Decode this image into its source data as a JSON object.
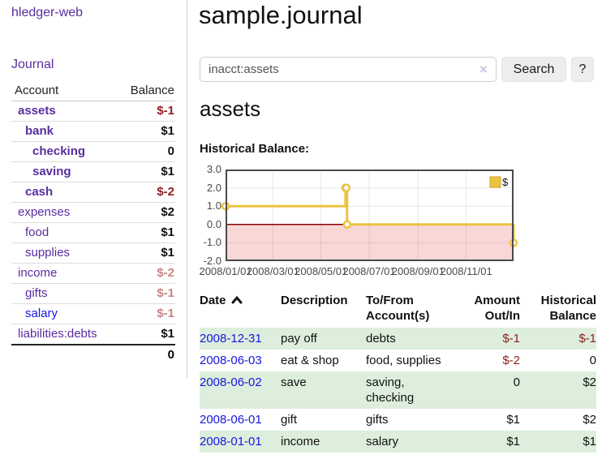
{
  "app": {
    "brand": "hledger-web",
    "nav_journal": "Journal"
  },
  "colors": {
    "link_purple": "#5a2ca0",
    "link_blue": "#1717e0",
    "negative_strong": "#8f1d1d",
    "negative_faded": "#c98585",
    "row_green": "#ddeedd",
    "chart_gold": "#EDC240",
    "chart_negative_region": "#F9D7D7",
    "chart_zero_line": "#8B0000"
  },
  "sidebar": {
    "headers": {
      "account": "Account",
      "balance": "Balance"
    },
    "accounts": [
      {
        "name": "assets",
        "balance": "$-1",
        "level": 1,
        "bold": true,
        "balance_style": "neg-strong",
        "link_style": "purple"
      },
      {
        "name": "bank",
        "balance": "$1",
        "level": 2,
        "bold": true,
        "balance_style": "pos",
        "link_style": "purple"
      },
      {
        "name": "checking",
        "balance": "0",
        "level": 3,
        "bold": true,
        "balance_style": "pos",
        "link_style": "purple"
      },
      {
        "name": "saving",
        "balance": "$1",
        "level": 3,
        "bold": true,
        "balance_style": "pos",
        "link_style": "purple"
      },
      {
        "name": "cash",
        "balance": "$-2",
        "level": 2,
        "bold": true,
        "balance_style": "neg-strong",
        "link_style": "purple"
      },
      {
        "name": "expenses",
        "balance": "$2",
        "level": 1,
        "bold": false,
        "balance_style": "pos",
        "link_style": "purple"
      },
      {
        "name": "food",
        "balance": "$1",
        "level": 2,
        "bold": false,
        "balance_style": "pos",
        "link_style": "purple"
      },
      {
        "name": "supplies",
        "balance": "$1",
        "level": 2,
        "bold": false,
        "balance_style": "pos",
        "link_style": "purple"
      },
      {
        "name": "income",
        "balance": "$-2",
        "level": 1,
        "bold": false,
        "balance_style": "neg-faded",
        "link_style": "purple"
      },
      {
        "name": "gifts",
        "balance": "$-1",
        "level": 2,
        "bold": false,
        "balance_style": "neg-faded",
        "link_style": "purple"
      },
      {
        "name": "salary",
        "balance": "$-1",
        "level": 2,
        "bold": false,
        "balance_style": "neg-faded",
        "link_style": "blue"
      },
      {
        "name": "liabilities:debts",
        "balance": "$1",
        "level": 1,
        "bold": false,
        "balance_style": "pos",
        "link_style": "purple"
      }
    ],
    "total": "0"
  },
  "header": {
    "title": "sample.journal"
  },
  "search": {
    "value": "inacct:assets",
    "clear_label": "×",
    "button": "Search",
    "help_button": "?"
  },
  "account_page": {
    "heading": "assets",
    "chart_label": "Historical Balance:"
  },
  "chart_data": {
    "type": "line",
    "step": true,
    "title": "Historical Balance",
    "series": [
      {
        "name": "$",
        "color": "#EDC240",
        "points": [
          {
            "date": "2008-01-01",
            "value": 1
          },
          {
            "date": "2008-06-01",
            "value": 2
          },
          {
            "date": "2008-06-02",
            "value": 2
          },
          {
            "date": "2008-06-03",
            "value": 0
          },
          {
            "date": "2008-12-31",
            "value": -1
          }
        ]
      }
    ],
    "x_range": [
      "2008-01-01",
      "2008-12-31"
    ],
    "x_ticks": [
      {
        "date": "2008-01-01",
        "label": "2008/01/01"
      },
      {
        "date": "2008-03-01",
        "label": "2008/03/01"
      },
      {
        "date": "2008-05-01",
        "label": "2008/05/01"
      },
      {
        "date": "2008-07-01",
        "label": "2008/07/01"
      },
      {
        "date": "2008-09-01",
        "label": "2008/09/01"
      },
      {
        "date": "2008-11-01",
        "label": "2008/11/01"
      }
    ],
    "ylim": [
      -2,
      3
    ],
    "y_ticks": [
      {
        "value": 3,
        "label": "3.0"
      },
      {
        "value": 2,
        "label": "2.0"
      },
      {
        "value": 1,
        "label": "1.0"
      },
      {
        "value": 0,
        "label": "0.0"
      },
      {
        "value": -1,
        "label": "-1.0"
      },
      {
        "value": -2,
        "label": "-2.0"
      }
    ],
    "grid": true,
    "legend_position": "top-right",
    "legend_label": "$",
    "negative_region_color": "#F9D7D7",
    "zero_line_color": "#8B0000",
    "border_color": "#4a4a4a",
    "marker_fill": "#ffffff"
  },
  "transactions": {
    "headers": [
      {
        "line1": "Date",
        "line2": ""
      },
      {
        "line1": "Description",
        "line2": ""
      },
      {
        "line1": "To/From",
        "line2": "Account(s)"
      },
      {
        "line1": "Amount",
        "line2": "Out/In"
      },
      {
        "line1": "Historical",
        "line2": "Balance"
      }
    ],
    "rows": [
      {
        "date": "2008-12-31",
        "description": "pay off",
        "accounts": "debts",
        "amount": "$-1",
        "amount_negative": true,
        "balance": "$-1",
        "balance_negative": true
      },
      {
        "date": "2008-06-03",
        "description": "eat & shop",
        "accounts": "food, supplies",
        "amount": "$-2",
        "amount_negative": true,
        "balance": "0",
        "balance_negative": false
      },
      {
        "date": "2008-06-02",
        "description": "save",
        "accounts": "saving,\nchecking",
        "amount": "0",
        "amount_negative": false,
        "balance": "$2",
        "balance_negative": false
      },
      {
        "date": "2008-06-01",
        "description": "gift",
        "accounts": "gifts",
        "amount": "$1",
        "amount_negative": false,
        "balance": "$2",
        "balance_negative": false
      },
      {
        "date": "2008-01-01",
        "description": "income",
        "accounts": "salary",
        "amount": "$1",
        "amount_negative": false,
        "balance": "$1",
        "balance_negative": false
      }
    ]
  }
}
